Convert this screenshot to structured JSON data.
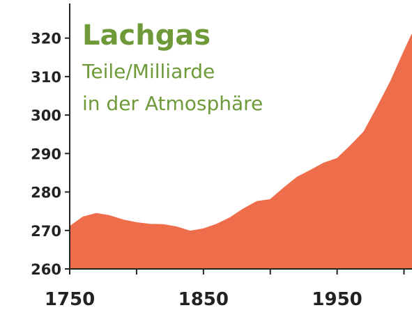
{
  "chart_data": {
    "type": "area",
    "title": "Lachgas",
    "subtitle": [
      "Teile/Milliarde",
      "in der Atmosphäre"
    ],
    "x": [
      1750,
      1760,
      1770,
      1780,
      1790,
      1800,
      1810,
      1820,
      1830,
      1840,
      1850,
      1860,
      1870,
      1880,
      1890,
      1900,
      1910,
      1920,
      1930,
      1940,
      1950,
      1960,
      1970,
      1980,
      1990,
      2000,
      2006
    ],
    "values": [
      271,
      273.5,
      274.4,
      273.8,
      272.7,
      272,
      271.6,
      271.5,
      270.9,
      269.8,
      270.4,
      271.6,
      273.3,
      275.6,
      277.5,
      278,
      281,
      283.8,
      285.6,
      287.5,
      288.7,
      292,
      295.6,
      302,
      308.7,
      316.5,
      321
    ],
    "color": "#ee6e4b",
    "xlim": [
      1750,
      2006
    ],
    "xticks": [
      1750,
      1850,
      1950
    ],
    "xminorticks": [
      1800,
      1900,
      2000
    ],
    "ylim": [
      260,
      329
    ],
    "yticks": [
      260,
      270,
      280,
      290,
      300,
      310,
      320
    ]
  }
}
